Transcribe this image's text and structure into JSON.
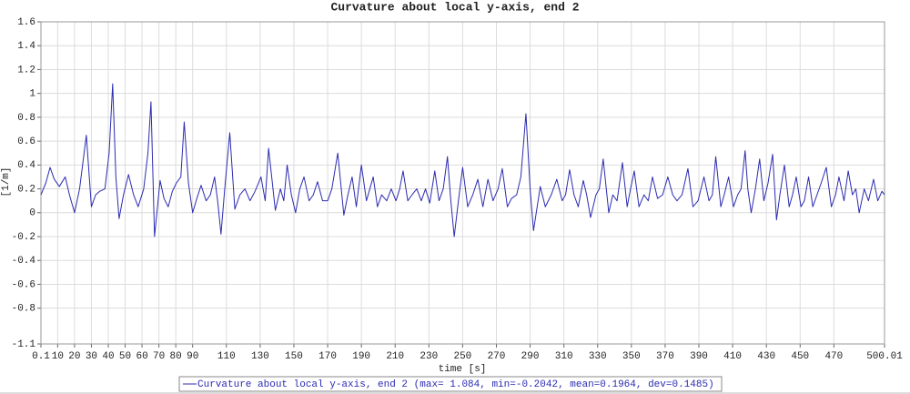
{
  "chart_data": {
    "type": "line",
    "title": "Curvature about local y-axis, end 2",
    "x_label": "time [s]",
    "y_label": "[1/m]",
    "x": [
      0.1,
      3,
      5.5,
      8,
      11,
      14.5,
      17,
      20,
      23,
      27,
      30,
      32.5,
      35,
      38,
      40.5,
      42.6,
      44.5,
      46.4,
      49,
      52,
      55,
      57.7,
      61,
      63.5,
      65.3,
      67.4,
      70.7,
      73,
      75.5,
      78,
      80.4,
      83,
      85,
      87.5,
      90,
      92.5,
      95,
      98,
      100.5,
      103,
      104.8,
      106.8,
      109,
      112,
      115,
      118,
      121,
      124,
      127,
      130.5,
      133,
      135,
      139,
      142,
      144,
      146,
      148.5,
      151,
      153.5,
      156,
      159,
      161.5,
      164,
      167,
      170,
      172.5,
      176,
      179.6,
      182,
      184.5,
      187,
      190,
      193,
      195,
      197,
      199.5,
      202,
      205,
      207.7,
      210.5,
      212.7,
      214.7,
      217.5,
      220,
      222.8,
      225.5,
      228,
      230.5,
      233.5,
      236,
      238.5,
      241,
      243,
      245,
      247.5,
      250,
      253,
      256,
      259,
      262,
      265,
      268,
      271,
      273.5,
      276.5,
      279,
      282,
      284.5,
      287.5,
      290,
      292,
      296,
      299,
      302.5,
      305.8,
      309,
      311,
      313.4,
      316,
      318.5,
      321.5,
      323.5,
      325.8,
      329,
      331,
      333.3,
      336.6,
      339,
      341.5,
      344.7,
      347.5,
      349.5,
      351.7,
      354.5,
      357.5,
      360,
      362.5,
      365.5,
      368.5,
      371.6,
      374.5,
      377,
      380,
      383.5,
      386.5,
      389.5,
      393,
      396,
      398,
      400,
      403,
      405,
      407.6,
      410.5,
      413,
      415,
      417.4,
      419,
      421,
      423.5,
      426,
      428.5,
      431,
      433.7,
      436,
      438,
      440.7,
      443.5,
      445.5,
      447.7,
      450.5,
      452.5,
      455,
      457.5,
      460,
      462.5,
      465.5,
      468.5,
      471,
      473,
      476,
      478.5,
      481,
      483,
      485,
      488,
      490.5,
      493.5,
      496,
      498.5,
      500.01
    ],
    "series": [
      {
        "name": "Curvature about local y-axis, end 2 (max= 1.084, min=-0.2042, mean=0.1964, dev=0.1485)",
        "color": "#2b2bb0",
        "values": [
          0.15,
          0.25,
          0.38,
          0.28,
          0.22,
          0.3,
          0.15,
          0.0,
          0.2,
          0.65,
          0.05,
          0.15,
          0.18,
          0.2,
          0.5,
          1.08,
          0.3,
          -0.05,
          0.15,
          0.32,
          0.15,
          0.05,
          0.2,
          0.5,
          0.93,
          -0.2,
          0.27,
          0.12,
          0.05,
          0.18,
          0.25,
          0.3,
          0.76,
          0.25,
          0.0,
          0.12,
          0.23,
          0.1,
          0.15,
          0.3,
          0.1,
          -0.18,
          0.2,
          0.67,
          0.03,
          0.15,
          0.2,
          0.1,
          0.18,
          0.3,
          0.1,
          0.54,
          0.02,
          0.2,
          0.1,
          0.4,
          0.15,
          0.0,
          0.2,
          0.3,
          0.1,
          0.15,
          0.26,
          0.1,
          0.1,
          0.2,
          0.5,
          -0.02,
          0.15,
          0.3,
          0.05,
          0.4,
          0.1,
          0.2,
          0.3,
          0.05,
          0.15,
          0.1,
          0.2,
          0.1,
          0.2,
          0.35,
          0.1,
          0.15,
          0.2,
          0.1,
          0.2,
          0.08,
          0.35,
          0.1,
          0.2,
          0.47,
          0.1,
          -0.2,
          0.1,
          0.38,
          0.05,
          0.15,
          0.28,
          0.05,
          0.28,
          0.1,
          0.2,
          0.37,
          0.05,
          0.12,
          0.15,
          0.3,
          0.83,
          0.2,
          -0.15,
          0.22,
          0.05,
          0.15,
          0.28,
          0.1,
          0.15,
          0.36,
          0.15,
          0.05,
          0.27,
          0.15,
          -0.04,
          0.15,
          0.2,
          0.45,
          0.0,
          0.15,
          0.1,
          0.42,
          0.05,
          0.2,
          0.35,
          0.05,
          0.15,
          0.1,
          0.3,
          0.12,
          0.15,
          0.3,
          0.15,
          0.1,
          0.15,
          0.37,
          0.05,
          0.1,
          0.3,
          0.1,
          0.15,
          0.47,
          0.05,
          0.15,
          0.3,
          0.05,
          0.15,
          0.2,
          0.52,
          0.2,
          0.0,
          0.2,
          0.45,
          0.1,
          0.25,
          0.49,
          -0.06,
          0.15,
          0.4,
          0.05,
          0.15,
          0.3,
          0.05,
          0.1,
          0.3,
          0.05,
          0.15,
          0.25,
          0.38,
          0.05,
          0.15,
          0.3,
          0.1,
          0.35,
          0.15,
          0.2,
          0.0,
          0.2,
          0.1,
          0.28,
          0.1,
          0.18,
          0.15
        ]
      }
    ],
    "xlim": [
      0.1,
      500.01
    ],
    "ylim": [
      -1.1,
      1.6
    ],
    "xticks": [
      0.1,
      10,
      20,
      30,
      40,
      50,
      60,
      70,
      80,
      90,
      110,
      130,
      150,
      170,
      190,
      210,
      230,
      250,
      270,
      290,
      310,
      330,
      350,
      370,
      390,
      410,
      430,
      450,
      470,
      500.01
    ],
    "yticks": [
      -1.1,
      -0.8,
      -0.6,
      -0.4,
      -0.2,
      0,
      0.2,
      0.4,
      0.6,
      0.8,
      1,
      1.2,
      1.4,
      1.6
    ],
    "grid": true
  }
}
